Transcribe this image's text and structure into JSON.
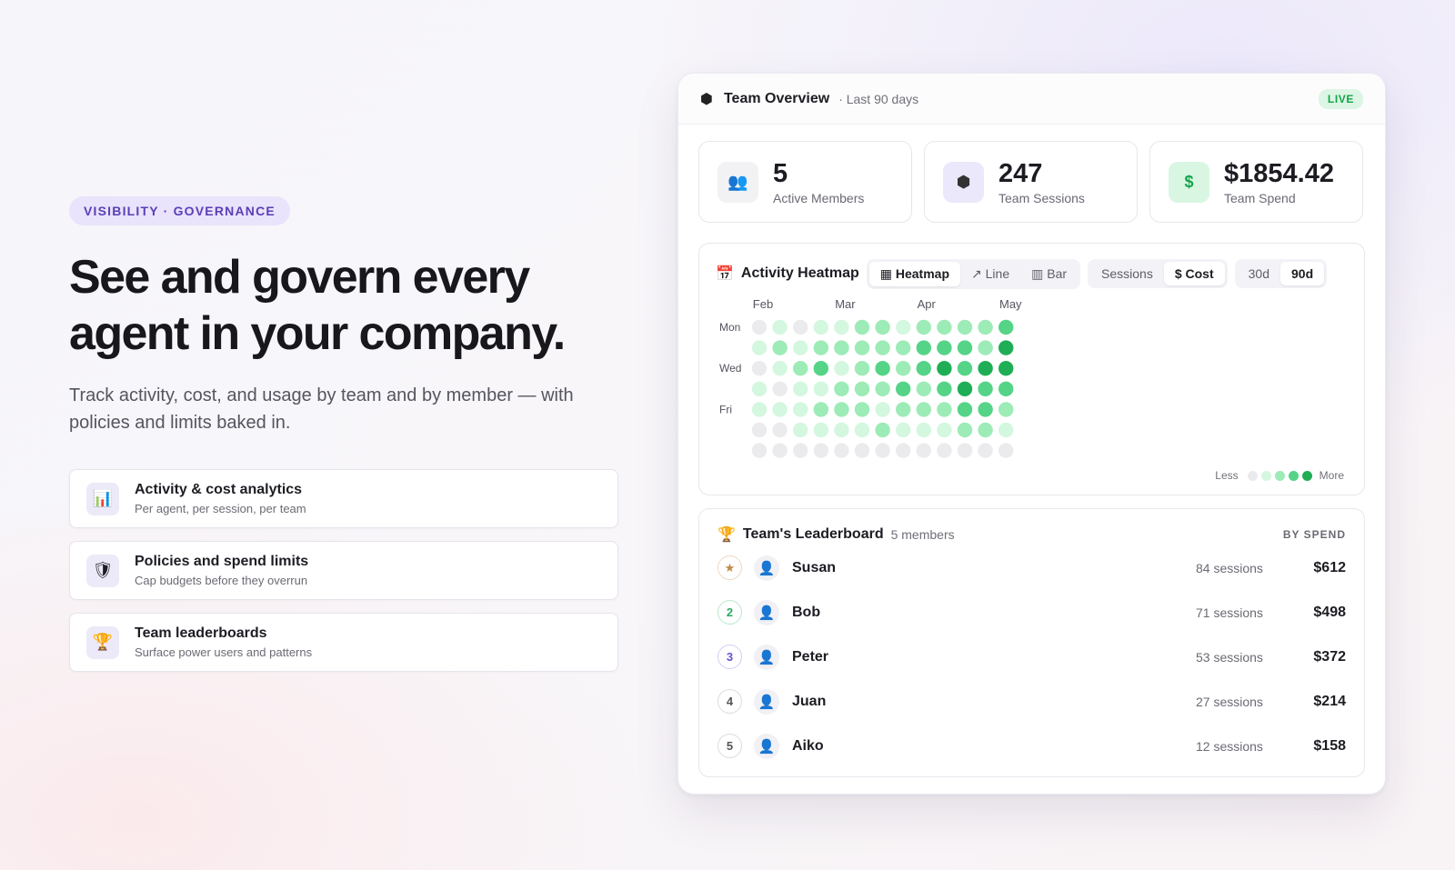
{
  "hero": {
    "eyebrow": "VISIBILITY · GOVERNANCE",
    "headline": "See and govern every agent in your company.",
    "subtitle": "Track activity, cost, and usage by team and by member — with policies and limits baked in.",
    "features": [
      {
        "icon": "bar-chart-icon",
        "glyph": "📊",
        "title": "Activity & cost analytics",
        "desc": "Per agent, per session, per team"
      },
      {
        "icon": "shield-icon",
        "glyph": "🛡",
        "title": "Policies and spend limits",
        "desc": "Cap budgets before they overrun"
      },
      {
        "icon": "trophy-icon",
        "glyph": "🏆",
        "title": "Team leaderboards",
        "desc": "Surface power users and patterns"
      }
    ]
  },
  "panel": {
    "title": "Team Overview",
    "range": "· Last 90 days",
    "live": "LIVE",
    "stats": [
      {
        "icon": "users-icon",
        "glyph": "👥",
        "value": "5",
        "label": "Active Members",
        "bg": "#f2f2f5"
      },
      {
        "icon": "cube-icon",
        "glyph": "⬢",
        "value": "247",
        "label": "Team Sessions",
        "bg": "#ece8fb"
      },
      {
        "icon": "dollar-icon",
        "glyph": "$",
        "value": "$1854.42",
        "label": "Team Spend",
        "bg": "#d9f6e2"
      }
    ],
    "heatmap": {
      "title": "Activity Heatmap",
      "view_options": [
        "Heatmap",
        "Line",
        "Bar"
      ],
      "view_glyphs": [
        "▦",
        "↗",
        "▥"
      ],
      "metric_options": [
        "Sessions",
        "$ Cost"
      ],
      "range_options": [
        "30d",
        "90d"
      ],
      "legend_less": "Less",
      "legend_more": "More",
      "legend_colors": [
        "#ebebee",
        "#d4f7df",
        "#9debb6",
        "#55d487",
        "#1fae55"
      ]
    },
    "leaderboard": {
      "title": "Team's Leaderboard",
      "count": "5 members",
      "sort": "BY SPEND",
      "rows": [
        {
          "rank": "★",
          "name": "Susan",
          "sessions": "84 sessions",
          "spend": "$612",
          "rank_color": "#c08a4a",
          "rank_border": "#ecd9c2"
        },
        {
          "rank": "2",
          "name": "Bob",
          "sessions": "71 sessions",
          "spend": "$498",
          "rank_color": "#2fa864",
          "rank_border": "#b9e8cb"
        },
        {
          "rank": "3",
          "name": "Peter",
          "sessions": "53 sessions",
          "spend": "$372",
          "rank_color": "#6b4fd0",
          "rank_border": "#d6ccf6"
        },
        {
          "rank": "4",
          "name": "Juan",
          "sessions": "27 sessions",
          "spend": "$214",
          "rank_color": "#666",
          "rank_border": "#dcdce2"
        },
        {
          "rank": "5",
          "name": "Aiko",
          "sessions": "12 sessions",
          "spend": "$158",
          "rank_color": "#666",
          "rank_border": "#dcdce2"
        }
      ]
    }
  },
  "chart_data": {
    "type": "heatmap",
    "title": "Activity Heatmap",
    "month_labels": [
      {
        "label": "Feb",
        "week": 0
      },
      {
        "label": "Mar",
        "week": 4
      },
      {
        "label": "Apr",
        "week": 8
      },
      {
        "label": "May",
        "week": 12
      }
    ],
    "day_labels": [
      {
        "label": "Mon",
        "day": 0
      },
      {
        "label": "Wed",
        "day": 2
      },
      {
        "label": "Fri",
        "day": 4
      }
    ],
    "levels": 5,
    "grid": [
      [
        0,
        1,
        0,
        1,
        1,
        2,
        2,
        1,
        2,
        2,
        2,
        2,
        3
      ],
      [
        1,
        2,
        1,
        2,
        2,
        2,
        2,
        2,
        3,
        3,
        3,
        2,
        4
      ],
      [
        0,
        1,
        2,
        3,
        1,
        2,
        3,
        2,
        3,
        4,
        3,
        4,
        4
      ],
      [
        1,
        0,
        1,
        1,
        2,
        2,
        2,
        3,
        2,
        3,
        4,
        3,
        3
      ],
      [
        1,
        1,
        1,
        2,
        2,
        2,
        1,
        2,
        2,
        2,
        3,
        3,
        2
      ],
      [
        0,
        0,
        1,
        1,
        1,
        1,
        2,
        1,
        1,
        1,
        2,
        2,
        1
      ],
      [
        0,
        0,
        0,
        0,
        0,
        0,
        0,
        0,
        0,
        0,
        0,
        0,
        0
      ]
    ]
  }
}
